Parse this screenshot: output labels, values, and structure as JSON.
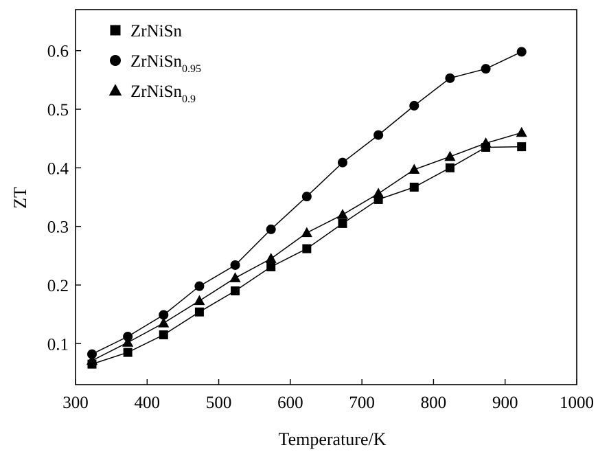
{
  "chart_data": {
    "type": "line",
    "xlabel": "Temperature/K",
    "ylabel": "ZT",
    "xlim": [
      300,
      1000
    ],
    "ylim": [
      0.03,
      0.67
    ],
    "xticks": [
      300,
      400,
      500,
      600,
      700,
      800,
      900,
      1000
    ],
    "yticks": [
      0.1,
      0.2,
      0.3,
      0.4,
      0.5,
      0.6
    ],
    "grid": false,
    "legend": "top-left",
    "x": [
      323,
      373,
      423,
      473,
      523,
      573,
      623,
      673,
      723,
      773,
      823,
      873,
      923
    ],
    "series": [
      {
        "name_base": "ZrNiSn",
        "name_sub": "",
        "marker": "square",
        "values": [
          0.065,
          0.085,
          0.115,
          0.154,
          0.19,
          0.231,
          0.262,
          0.305,
          0.346,
          0.367,
          0.4,
          0.435,
          0.436
        ]
      },
      {
        "name_base": "ZrNiSn",
        "name_sub": "0.95",
        "marker": "circle",
        "values": [
          0.082,
          0.112,
          0.149,
          0.198,
          0.234,
          0.295,
          0.351,
          0.409,
          0.456,
          0.506,
          0.553,
          0.569,
          0.598
        ]
      },
      {
        "name_base": "ZrNiSn",
        "name_sub": "0.9",
        "marker": "triangle",
        "values": [
          0.071,
          0.102,
          0.135,
          0.173,
          0.212,
          0.245,
          0.289,
          0.32,
          0.356,
          0.397,
          0.419,
          0.442,
          0.46
        ]
      }
    ]
  }
}
